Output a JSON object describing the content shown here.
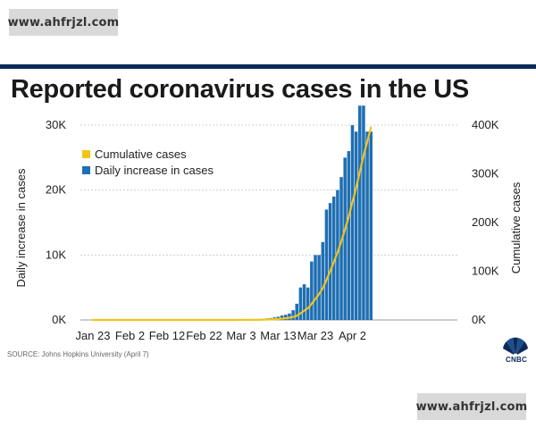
{
  "watermarks": {
    "top": "www.ahfrjzl.com",
    "bottom": "www.ahfrjzl.com"
  },
  "source": "SOURCE: Johns Hopkins University (April 7)",
  "logo": {
    "name": "CNBC",
    "icon": "peacock-icon"
  },
  "colors": {
    "bar": "#1f6fb2",
    "line": "#f2c418",
    "rule": "#0b2a5a",
    "grid": "#cfcfcf"
  },
  "chart_data": {
    "type": "bar",
    "title": "Reported coronavirus cases in the US",
    "xlabel": "",
    "ylabel": "Daily increase in cases",
    "y2label": "Cumulative cases",
    "ylim": [
      0,
      30000
    ],
    "y2lim": [
      0,
      400000
    ],
    "yticks": [
      {
        "value": 0,
        "label": "0K"
      },
      {
        "value": 10000,
        "label": "10K"
      },
      {
        "value": 20000,
        "label": "20K"
      },
      {
        "value": 30000,
        "label": "30K"
      }
    ],
    "y2ticks": [
      {
        "value": 0,
        "label": "0K"
      },
      {
        "value": 100000,
        "label": "100K"
      },
      {
        "value": 200000,
        "label": "200K"
      },
      {
        "value": 300000,
        "label": "300K"
      },
      {
        "value": 400000,
        "label": "400K"
      }
    ],
    "xtick_labels": [
      "Jan 23",
      "Feb 2",
      "Feb 12",
      "Feb 22",
      "Mar 3",
      "Mar 13",
      "Mar 23",
      "Apr 2"
    ],
    "legend_placement": "top-left",
    "grid": "horizontal",
    "x": [
      "Mar 1",
      "Mar 2",
      "Mar 3",
      "Mar 4",
      "Mar 5",
      "Mar 6",
      "Mar 7",
      "Mar 8",
      "Mar 9",
      "Mar 10",
      "Mar 11",
      "Mar 12",
      "Mar 13",
      "Mar 14",
      "Mar 15",
      "Mar 16",
      "Mar 17",
      "Mar 18",
      "Mar 19",
      "Mar 20",
      "Mar 21",
      "Mar 22",
      "Mar 23",
      "Mar 24",
      "Mar 25",
      "Mar 26",
      "Mar 27",
      "Mar 28",
      "Mar 29",
      "Mar 30",
      "Mar 31",
      "Apr 1",
      "Apr 2",
      "Apr 3",
      "Apr 4",
      "Apr 5",
      "Apr 6",
      "Apr 7"
    ],
    "series": [
      {
        "name": "Daily increase in cases",
        "axis": "left",
        "values": [
          10,
          15,
          25,
          30,
          50,
          70,
          100,
          120,
          200,
          250,
          300,
          400,
          500,
          700,
          800,
          1000,
          1500,
          2500,
          5000,
          5500,
          5000,
          9000,
          10000,
          10000,
          12000,
          17000,
          18000,
          19000,
          20000,
          22000,
          25000,
          26000,
          30000,
          29000,
          33000,
          33000,
          29000,
          29000
        ]
      },
      {
        "name": "Cumulative cases",
        "axis": "right",
        "values": [
          50,
          65,
          90,
          120,
          170,
          240,
          340,
          460,
          660,
          910,
          1210,
          1610,
          2110,
          2810,
          3610,
          4610,
          6110,
          8610,
          13610,
          19110,
          24110,
          33110,
          43110,
          53110,
          65110,
          82110,
          100110,
          119110,
          139110,
          161110,
          186110,
          212110,
          242110,
          271110,
          304110,
          337110,
          366110,
          395110
        ]
      }
    ],
    "first_date": "Jan 23",
    "tick_spacing_days": 10
  }
}
